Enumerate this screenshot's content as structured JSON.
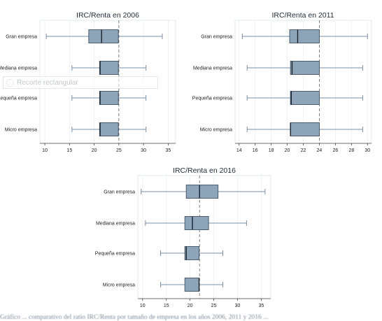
{
  "colors": {
    "box_fill": "#8ea4b8",
    "box_stroke": "#3f5366",
    "whisker": "#7b8fa3",
    "median_line": "#1a2530",
    "reference_line": "#707070",
    "grid": "#eaedf0",
    "axis": "#444444"
  },
  "overlay": {
    "icon": "scissors-icon",
    "label": "Recorte rectangular"
  },
  "caption": "Gráfico ... comparativo del ratio IRC/Renta por tamaño de empresa en los años 2006, 2011 y 2016 ...",
  "chart_data": [
    {
      "type": "box",
      "title": "IRC/Renta en 2006",
      "xlim": [
        9,
        36.5
      ],
      "ticks": [
        10,
        15,
        20,
        25,
        30,
        35
      ],
      "reference_line": 25,
      "categories": [
        "Gran empresa",
        "Mediana empresa",
        "Pequeña empresa",
        "Micro empresa"
      ],
      "boxes": [
        {
          "min": 10.3,
          "q1": 18.9,
          "median": 21.5,
          "q3": 24.9,
          "max": 33.8
        },
        {
          "min": 15.5,
          "q1": 21.1,
          "median": 21.2,
          "q3": 24.9,
          "max": 30.5
        },
        {
          "min": 15.5,
          "q1": 21.1,
          "median": 21.2,
          "q3": 24.9,
          "max": 30.5
        },
        {
          "min": 15.5,
          "q1": 21.1,
          "median": 21.2,
          "q3": 24.9,
          "max": 30.5
        }
      ]
    },
    {
      "type": "box",
      "title": "IRC/Renta en 2011",
      "xlim": [
        13.5,
        30.5
      ],
      "ticks": [
        14,
        16,
        18,
        20,
        22,
        24,
        26,
        28,
        30
      ],
      "reference_line": 24,
      "categories": [
        "Gran empresa",
        "Mediana empresa",
        "Pequeña empresa",
        "Micro empresa"
      ],
      "boxes": [
        {
          "min": 14.4,
          "q1": 20.3,
          "median": 21.3,
          "q3": 24.0,
          "max": 30.0
        },
        {
          "min": 15.0,
          "q1": 20.4,
          "median": 20.6,
          "q3": 24.0,
          "max": 29.4
        },
        {
          "min": 15.0,
          "q1": 20.4,
          "median": 20.5,
          "q3": 24.0,
          "max": 29.4
        },
        {
          "min": 15.0,
          "q1": 20.4,
          "median": 20.4,
          "q3": 24.0,
          "max": 29.4
        }
      ]
    },
    {
      "type": "box",
      "title": "IRC/Renta en 2016",
      "xlim": [
        9,
        37
      ],
      "ticks": [
        10,
        15,
        20,
        25,
        30,
        35
      ],
      "reference_line": 22,
      "categories": [
        "Gran empresa",
        "Mediana empresa",
        "Pequeña empresa",
        "Micro empresa"
      ],
      "boxes": [
        {
          "min": 9.7,
          "q1": 19.2,
          "median": 22.0,
          "q3": 25.9,
          "max": 35.8
        },
        {
          "min": 10.6,
          "q1": 18.9,
          "median": 20.5,
          "q3": 23.9,
          "max": 31.9
        },
        {
          "min": 13.8,
          "q1": 18.9,
          "median": 19.2,
          "q3": 21.9,
          "max": 26.9
        },
        {
          "min": 13.8,
          "q1": 18.9,
          "median": 21.9,
          "q3": 21.9,
          "max": 26.9
        }
      ]
    }
  ]
}
